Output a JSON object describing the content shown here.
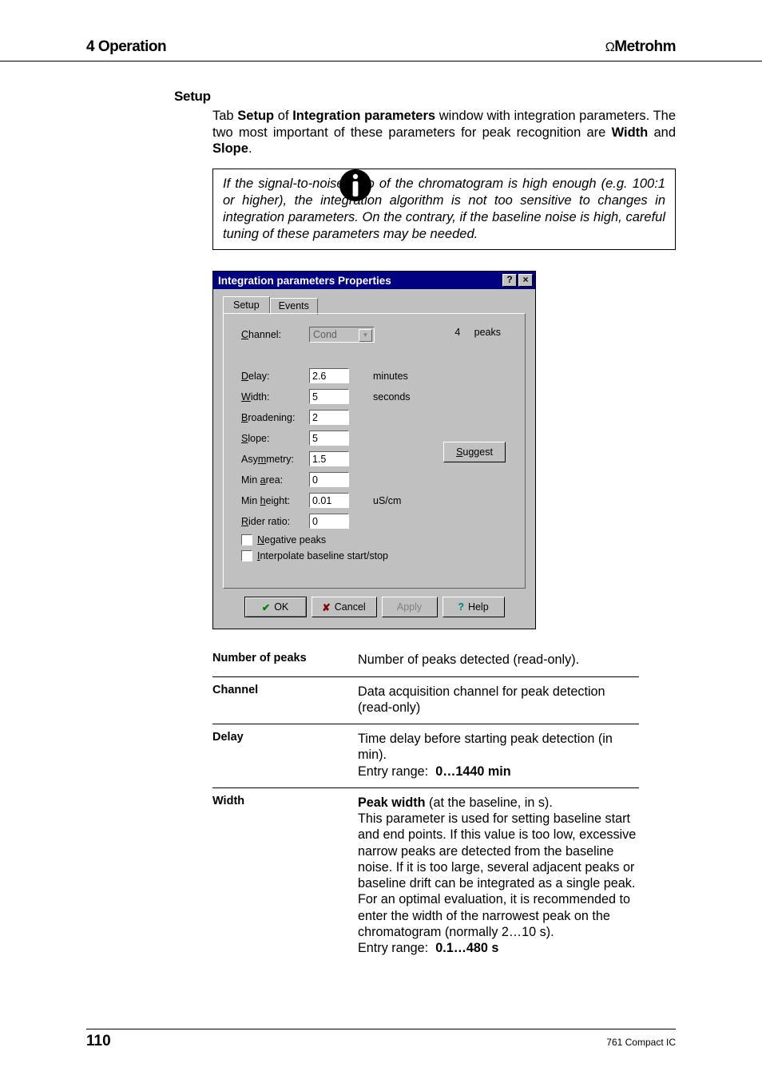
{
  "header": {
    "left": "4 Operation",
    "right_prefix": "Ω",
    "right_brand": "Metrohm"
  },
  "setup": {
    "heading": "Setup",
    "intro_parts": [
      "Tab ",
      "Setup",
      " of ",
      "Integration parameters",
      " window with integration parameters. The two most important of these parameters for peak recognition are ",
      "Width",
      " and ",
      "Slope",
      "."
    ],
    "note": "If the signal-to-noise ratio of the chromatogram is high enough (e.g. 100:1 or higher), the integration algorithm is not too sensitive to changes in integration parameters. On the contrary, if the baseline noise is high, careful tuning of these parameters may be needed."
  },
  "dialog": {
    "title": "Integration parameters Properties",
    "help_btn": "?",
    "close_btn": "×",
    "tabs": {
      "setup": "Setup",
      "events": "Events"
    },
    "channel_label": "Channel:",
    "channel_value": "Cond",
    "peaks_count": "4",
    "peaks_label": "peaks",
    "rows": [
      {
        "label": "Delay:",
        "u": "D",
        "rest": "elay:",
        "value": "2.6",
        "unit": "minutes"
      },
      {
        "label": "Width:",
        "u": "W",
        "rest": "idth:",
        "value": "5",
        "unit": "seconds"
      },
      {
        "label": "Broadening:",
        "u": "B",
        "rest": "roadening:",
        "value": "2",
        "unit": ""
      },
      {
        "label": "Slope:",
        "u": "S",
        "rest": "lope:",
        "value": "5",
        "unit": ""
      },
      {
        "label": "Asymmetry:",
        "pre": "Asy",
        "u": "m",
        "rest": "metry:",
        "value": "1.5",
        "unit": ""
      },
      {
        "label": "Min area:",
        "pre": "Min ",
        "u": "a",
        "rest": "rea:",
        "value": "0",
        "unit": ""
      },
      {
        "label": "Min height:",
        "pre": "Min ",
        "u": "h",
        "rest": "eight:",
        "value": "0.01",
        "unit": "uS/cm"
      },
      {
        "label": "Rider ratio:",
        "u": "R",
        "rest": "ider ratio:",
        "value": "0",
        "unit": ""
      }
    ],
    "suggest": "Suggest",
    "neg_peaks": "Negative peaks",
    "interp": "Interpolate baseline start/stop",
    "buttons": {
      "ok": "OK",
      "cancel": "Cancel",
      "apply": "Apply",
      "help": "Help"
    }
  },
  "params": [
    {
      "name": "Number of peaks",
      "desc": "Number of peaks detected (read-only)."
    },
    {
      "name": "Channel",
      "desc": "Data acquisition channel for peak detection (read-only)"
    },
    {
      "name": "Delay",
      "desc": "Time delay before starting peak detection (in min).\nEntry range:  ",
      "range": "0…1440 min"
    },
    {
      "name": "Width",
      "desc_lead_bold": "Peak width",
      "desc_lead_rest": " (at the baseline, in s).",
      "desc": "This parameter is used for setting baseline start and end points. If this value is too low, excessive narrow peaks are detected from the baseline noise. If it is too large, several adjacent peaks or baseline drift can be integrated as a single peak. For an optimal evaluation, it is recommended to enter the width of the narrowest peak on the chromatogram (normally 2…10 s).\nEntry range:  ",
      "range": "0.1…480 s"
    }
  ],
  "footer": {
    "page": "110",
    "text": "761 Compact IC"
  }
}
